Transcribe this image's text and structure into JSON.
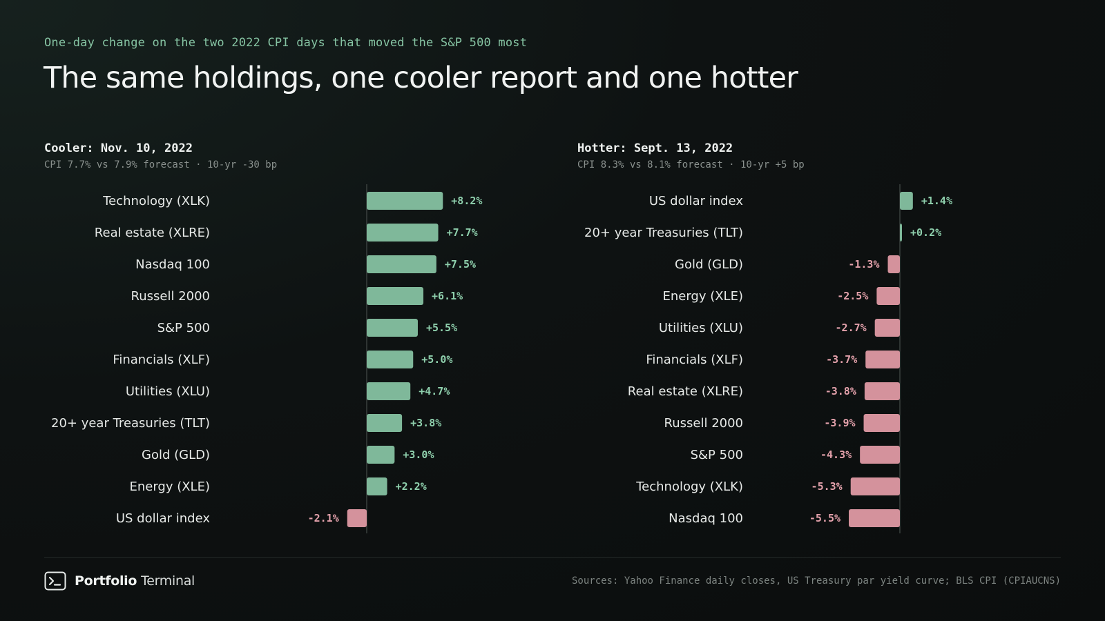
{
  "header": {
    "kicker": "One-day change on the two 2022 CPI days that moved the S&P 500 most",
    "title": "The same holdings, one cooler report and one hotter"
  },
  "colors": {
    "positive": "#7fb89a",
    "negative": "#d4929c",
    "positive_text": "#8fd0ad",
    "negative_text": "#e3a1ab",
    "axis": "#3a403e"
  },
  "chart_data": [
    {
      "type": "bar",
      "orientation": "horizontal",
      "title": "Cooler: Nov. 10, 2022",
      "subtitle": "CPI 7.7% vs 7.9% forecast · 10-yr -30 bp",
      "unit": "%",
      "categories": [
        "Technology (XLK)",
        "Real estate (XLRE)",
        "Nasdaq 100",
        "Russell 2000",
        "S&P 500",
        "Financials (XLF)",
        "Utilities (XLU)",
        "20+ year Treasuries (TLT)",
        "Gold (GLD)",
        "Energy (XLE)",
        "US dollar index"
      ],
      "values": [
        8.2,
        7.7,
        7.5,
        6.1,
        5.5,
        5.0,
        4.7,
        3.8,
        3.0,
        2.2,
        -2.1
      ],
      "value_labels": [
        "+8.2%",
        "+7.7%",
        "+7.5%",
        "+6.1%",
        "+5.5%",
        "+5.0%",
        "+4.7%",
        "+3.8%",
        "+3.0%",
        "+2.2%",
        "-2.1%"
      ]
    },
    {
      "type": "bar",
      "orientation": "horizontal",
      "title": "Hotter: Sept. 13, 2022",
      "subtitle": "CPI 8.3% vs 8.1% forecast · 10-yr +5 bp",
      "unit": "%",
      "categories": [
        "US dollar index",
        "20+ year Treasuries (TLT)",
        "Gold (GLD)",
        "Energy (XLE)",
        "Utilities (XLU)",
        "Financials (XLF)",
        "Real estate (XLRE)",
        "Russell 2000",
        "S&P 500",
        "Technology (XLK)",
        "Nasdaq 100"
      ],
      "values": [
        1.4,
        0.2,
        -1.3,
        -2.5,
        -2.7,
        -3.7,
        -3.8,
        -3.9,
        -4.3,
        -5.3,
        -5.5
      ],
      "value_labels": [
        "+1.4%",
        "+0.2%",
        "-1.3%",
        "-2.5%",
        "-2.7%",
        "-3.7%",
        "-3.8%",
        "-3.9%",
        "-4.3%",
        "-5.3%",
        "-5.5%"
      ]
    }
  ],
  "footer": {
    "brand_bold": "Portfolio",
    "brand_rest": "Terminal",
    "brand_icon": "terminal-prompt-icon",
    "sources": "Sources: Yahoo Finance daily closes, US Treasury par yield curve; BLS CPI (CPIAUCNS)"
  }
}
